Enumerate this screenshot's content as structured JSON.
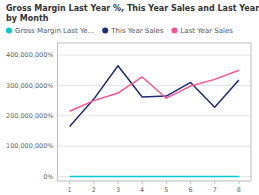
{
  "chart_data": {
    "type": "line",
    "title": "Gross Margin Last Year %, This Year Sales and Last Year Sales by Month",
    "x": [
      1,
      2,
      3,
      4,
      5,
      6,
      7,
      8
    ],
    "series": [
      {
        "name": "Gross Margin Last Ye...",
        "color": "#00c8d4",
        "values": [
          0,
          0,
          0,
          0,
          0,
          0,
          0,
          0
        ]
      },
      {
        "name": "This Year Sales",
        "color": "#1e2b7a",
        "values": [
          165000000,
          255000000,
          365000000,
          262000000,
          265000000,
          310000000,
          228000000,
          318000000
        ]
      },
      {
        "name": "Last Year Sales",
        "color": "#ff5090",
        "values": [
          215000000,
          250000000,
          275000000,
          328000000,
          258000000,
          298000000,
          320000000,
          350000000
        ]
      }
    ],
    "xlim": [
      0.5,
      8.5
    ],
    "xticks": [
      1,
      2,
      3,
      4,
      5,
      6,
      7,
      8
    ],
    "ylim": [
      -15000000,
      440000000
    ],
    "yticks": [
      {
        "value": 0,
        "label": "0%"
      },
      {
        "value": 100000000,
        "label": "100,000,000%"
      },
      {
        "value": 200000000,
        "label": "200,000,000%"
      },
      {
        "value": 300000000,
        "label": "300,000,000%"
      },
      {
        "value": 400000000,
        "label": "400,000,000%"
      }
    ],
    "grid": true,
    "legend": "upper left"
  }
}
